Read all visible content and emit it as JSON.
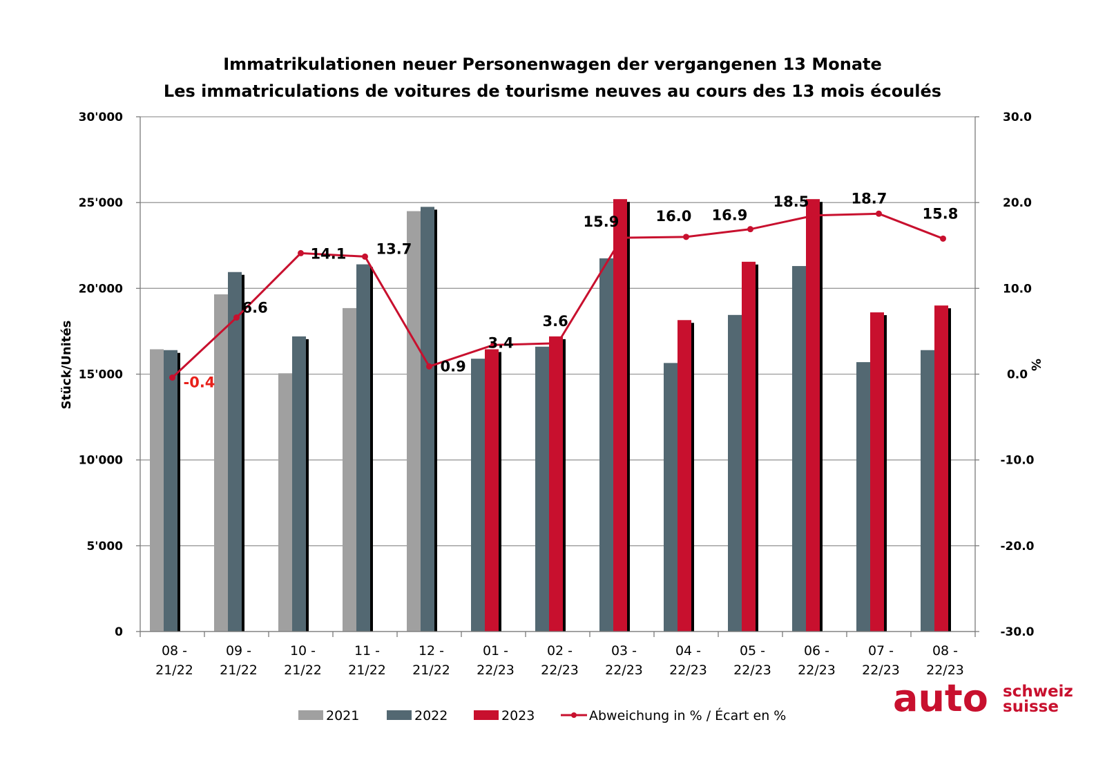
{
  "chart_data": {
    "type": "bar",
    "title": "Immatrikulationen neuer Personenwagen der vergangenen 13 Monate",
    "subtitle": "Les immatriculations de voitures de tourisme neuves au cours des 13 mois écoulés",
    "ylabel": "Stück/Unités",
    "y2label": "%",
    "ylim": [
      0,
      30000
    ],
    "y2lim": [
      -30,
      30
    ],
    "yticks": [
      "0",
      "5'000",
      "10'000",
      "15'000",
      "20'000",
      "25'000",
      "30'000"
    ],
    "y2ticks": [
      "-30.0",
      "-20.0",
      "-10.0",
      "0.0",
      "10.0",
      "20.0",
      "30.0"
    ],
    "categories": [
      [
        "08 -",
        "21/22"
      ],
      [
        "09 -",
        "21/22"
      ],
      [
        "10 -",
        "21/22"
      ],
      [
        "11 -",
        "21/22"
      ],
      [
        "12 -",
        "21/22"
      ],
      [
        "01 -",
        "22/23"
      ],
      [
        "02 -",
        "22/23"
      ],
      [
        "03 -",
        "22/23"
      ],
      [
        "04 -",
        "22/23"
      ],
      [
        "05 -",
        "22/23"
      ],
      [
        "06 -",
        "22/23"
      ],
      [
        "07 -",
        "22/23"
      ],
      [
        "08 -",
        "22/23"
      ]
    ],
    "series": [
      {
        "name": "2021",
        "type": "bar",
        "color": "#a0a0a0",
        "values": [
          16450,
          19650,
          15050,
          18850,
          24500,
          null,
          null,
          null,
          null,
          null,
          null,
          null,
          null
        ]
      },
      {
        "name": "2022",
        "type": "bar",
        "color": "#536872",
        "values": [
          16400,
          20950,
          17200,
          21400,
          24750,
          15900,
          16600,
          21750,
          15650,
          18450,
          21300,
          15700,
          16400
        ]
      },
      {
        "name": "2023",
        "type": "bar",
        "color": "#c8102e",
        "values": [
          null,
          null,
          null,
          null,
          null,
          16450,
          17200,
          25200,
          18150,
          21550,
          25200,
          18600,
          19000
        ]
      },
      {
        "name": "Abweichung in % / Écart en %",
        "type": "line",
        "axis": "right",
        "color": "#c8102e",
        "values": [
          -0.4,
          6.6,
          14.1,
          13.7,
          0.9,
          3.4,
          3.6,
          15.9,
          16.0,
          16.9,
          18.5,
          18.7,
          15.8
        ],
        "labels": [
          "-0.4",
          "6.6",
          "14.1",
          "13.7",
          "0.9",
          "3.4",
          "3.6",
          "15.9",
          "16.0",
          "16.9",
          "18.5",
          "18.7",
          "15.8"
        ]
      }
    ],
    "legend_position": "bottom",
    "grid": true
  },
  "logo": {
    "main": "auto",
    "top": "schweiz",
    "bottom": "suisse"
  }
}
